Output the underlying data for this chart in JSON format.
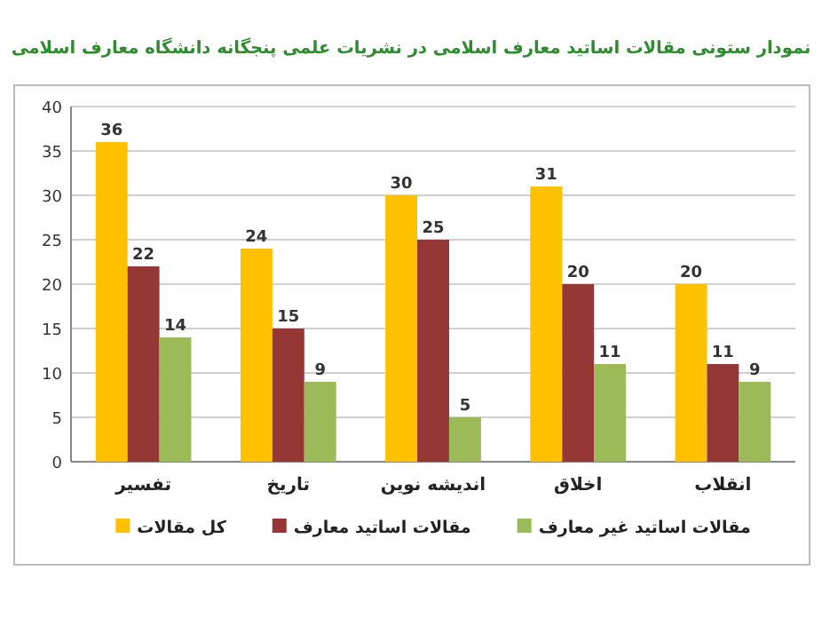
{
  "chart_data": {
    "type": "bar",
    "title": "نمودار ستونی مقالات اساتید معارف اسلامی در نشریات علمی پنجگانه دانشگاه معارف اسلامی",
    "categories": [
      "تفسیر",
      "تاریخ",
      "اندیشه نوین",
      "اخلاق",
      "انقلاب"
    ],
    "series": [
      {
        "name": "کل مقالات",
        "color": "#ffc000",
        "values": [
          36,
          24,
          30,
          31,
          20
        ]
      },
      {
        "name": "مقالات اساتید معارف",
        "color": "#953735",
        "values": [
          22,
          15,
          25,
          20,
          11
        ]
      },
      {
        "name": "مقالات اساتید غیر معارف",
        "color": "#9bbb59",
        "values": [
          14,
          9,
          5,
          11,
          9
        ]
      }
    ],
    "ylim": [
      0,
      40
    ],
    "yticks": [
      0,
      5,
      10,
      15,
      20,
      25,
      30,
      35,
      40
    ],
    "grid": "y",
    "legend": "bottom",
    "data_labels": true
  }
}
